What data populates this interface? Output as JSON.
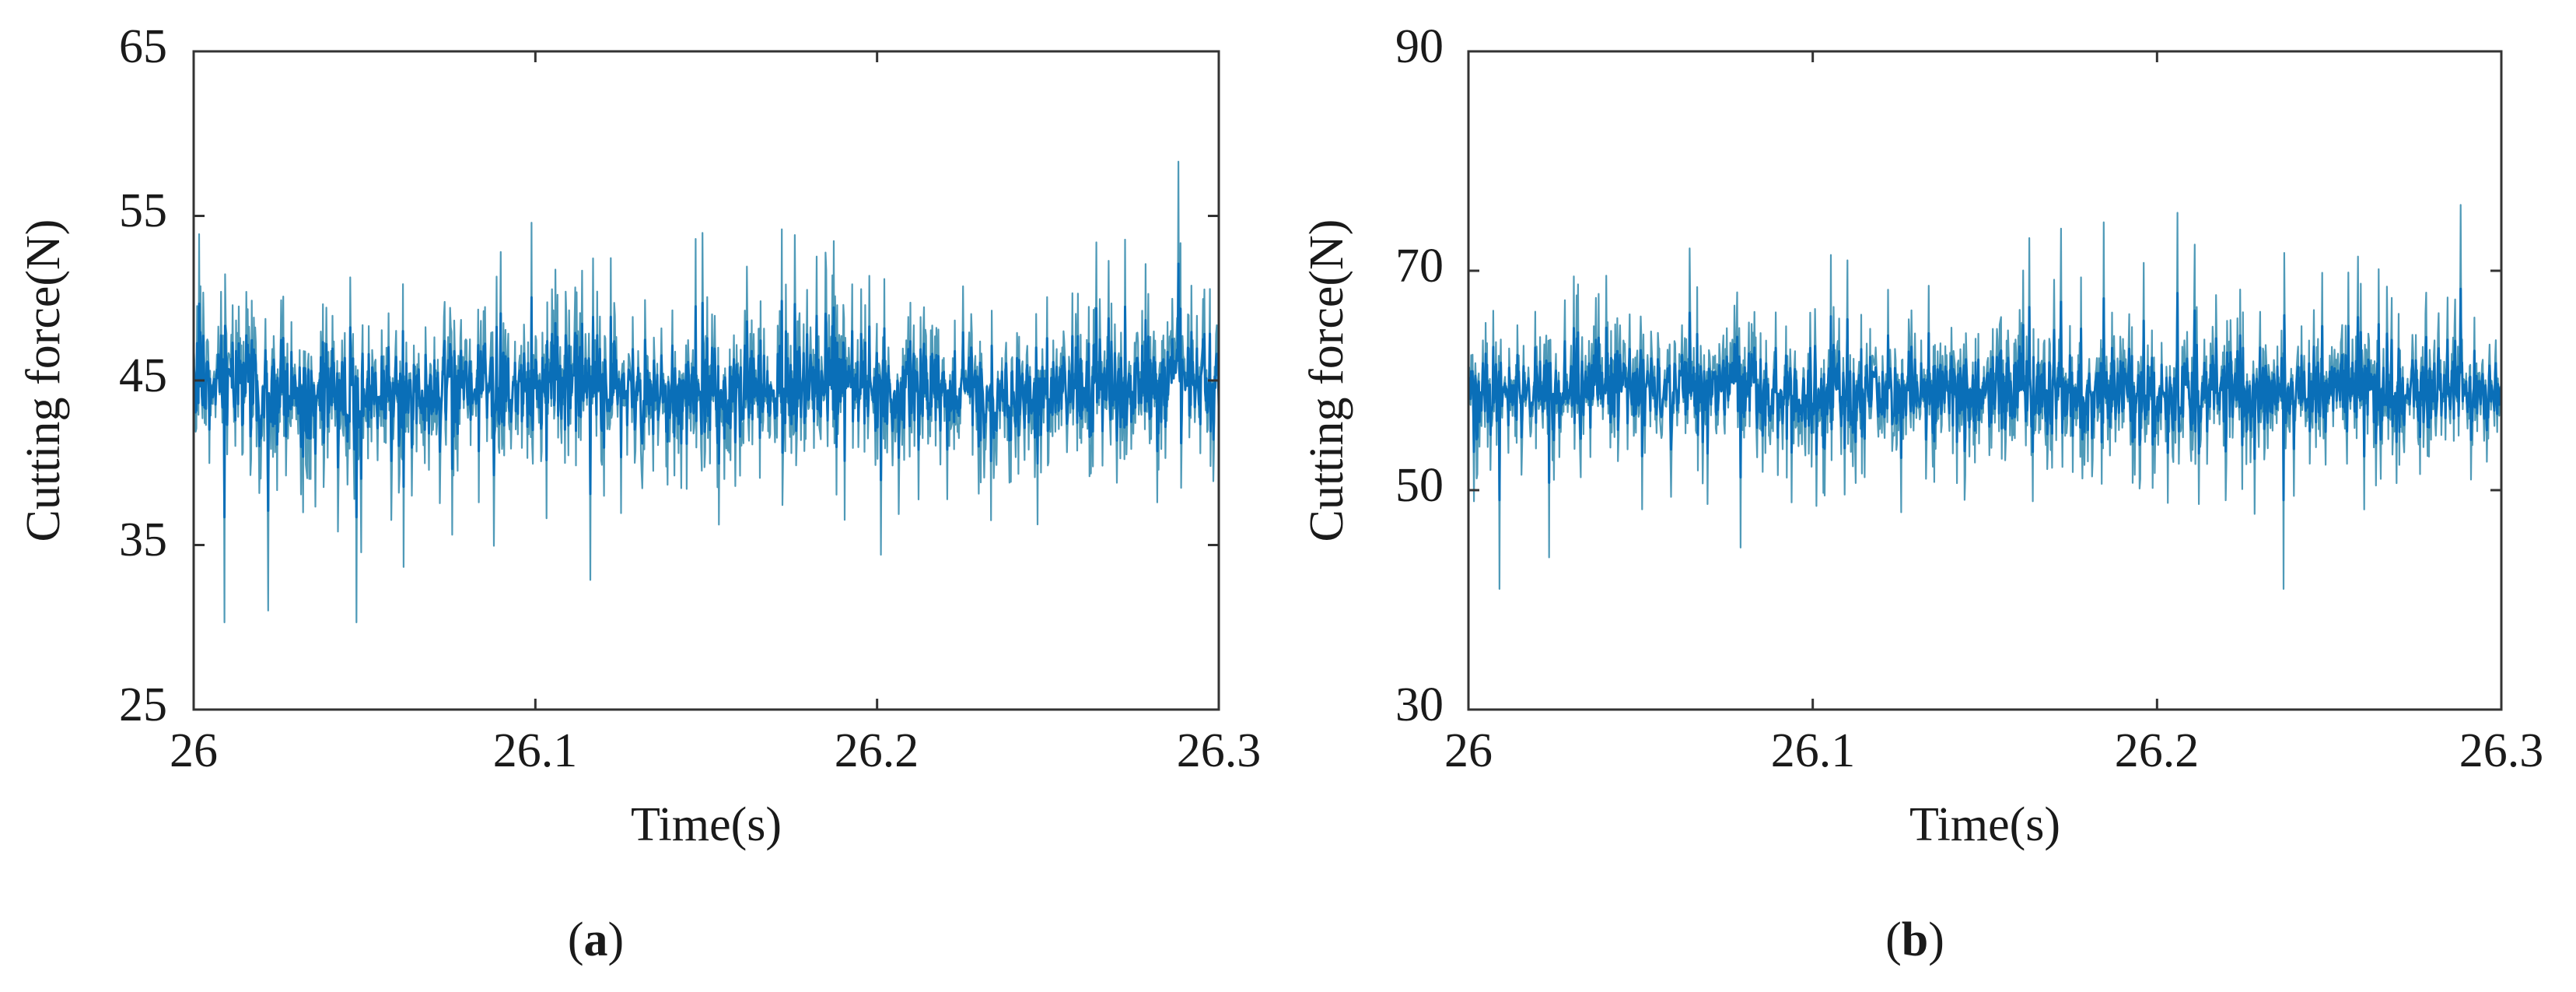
{
  "colors": {
    "signal_core": "#0a6fb8",
    "signal_spike": "#4f9ab8",
    "axis": "#333333"
  },
  "chart_data": [
    {
      "type": "line",
      "panel_label": "a",
      "xlabel": "Time(s)",
      "ylabel": "Cutting force(N)",
      "xlim": [
        26,
        26.3
      ],
      "ylim": [
        25,
        65
      ],
      "xticks": [
        26,
        26.1,
        26.2,
        26.3
      ],
      "xtick_labels": [
        "26",
        "26.1",
        "26.2",
        "26.3"
      ],
      "yticks": [
        25,
        35,
        45,
        55,
        65
      ],
      "ytick_labels": [
        "25",
        "35",
        "45",
        "55",
        "65"
      ],
      "grid": false,
      "series": [
        {
          "signal": "dense noisy oscillation",
          "sample_count": 1500,
          "mean": 44.5,
          "band_std": 2.8,
          "min": 30.3,
          "max": 58.3,
          "values": []
        }
      ]
    },
    {
      "type": "line",
      "panel_label": "b",
      "xlabel": "Time(s)",
      "ylabel": "Cutting force(N)",
      "xlim": [
        26,
        26.3
      ],
      "ylim": [
        30,
        90
      ],
      "xticks": [
        26,
        26.1,
        26.2,
        26.3
      ],
      "xtick_labels": [
        "26",
        "26.1",
        "26.2",
        "26.3"
      ],
      "yticks": [
        30,
        50,
        70,
        90
      ],
      "ytick_labels": [
        "30",
        "50",
        "70",
        "90"
      ],
      "grid": false,
      "series": [
        {
          "signal": "dense noisy oscillation",
          "sample_count": 1500,
          "mean": 59.0,
          "band_std": 3.6,
          "min": 41.0,
          "max": 76.0,
          "values": []
        }
      ]
    }
  ]
}
